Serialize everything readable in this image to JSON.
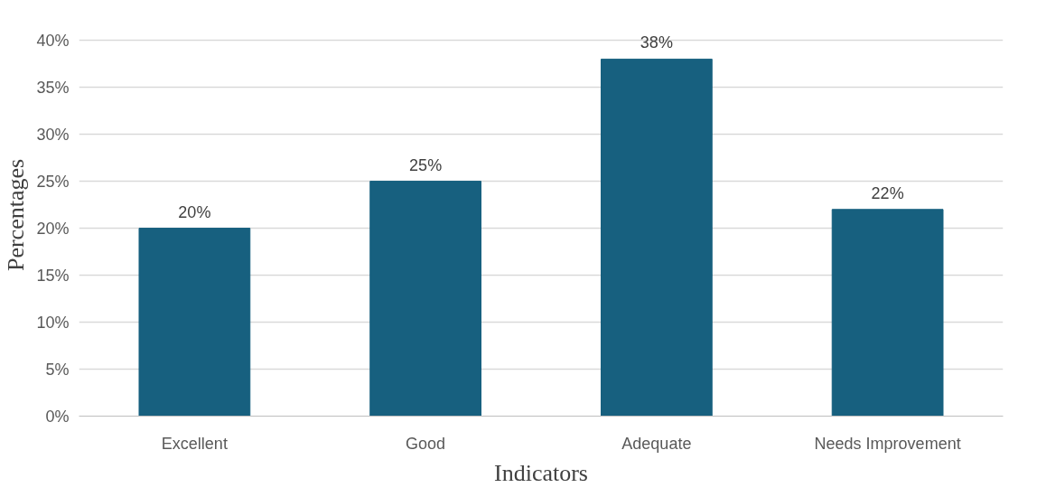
{
  "chart_data": {
    "type": "bar",
    "xlabel": "Indicators",
    "ylabel": "Percentages",
    "categories": [
      "Excellent",
      "Good",
      "Adequate",
      "Needs Improvement"
    ],
    "values": [
      20,
      25,
      38,
      22
    ],
    "value_labels": [
      "20%",
      "25%",
      "38%",
      "22%"
    ],
    "color": "#17607f",
    "ylim": [
      0,
      40
    ],
    "yticks": [
      {
        "value": 0,
        "label": "0%"
      },
      {
        "value": 5,
        "label": "5%"
      },
      {
        "value": 10,
        "label": "10%"
      },
      {
        "value": 15,
        "label": "15%"
      },
      {
        "value": 20,
        "label": "20%"
      },
      {
        "value": 25,
        "label": "25%"
      },
      {
        "value": 30,
        "label": "30%"
      },
      {
        "value": 35,
        "label": "35%"
      },
      {
        "value": 40,
        "label": "40%"
      }
    ],
    "grid": "y"
  }
}
